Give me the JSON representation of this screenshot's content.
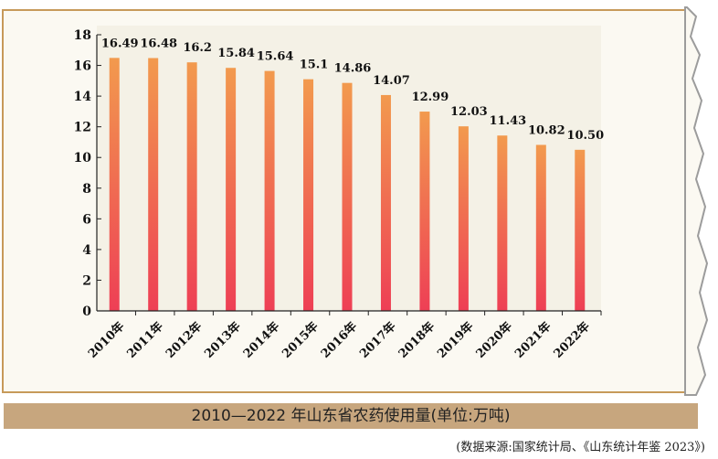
{
  "chart_data": {
    "type": "bar",
    "title": "2010—2022 年山东省农药使用量(单位:万吨)",
    "categories": [
      "2010年",
      "2011年",
      "2012年",
      "2013年",
      "2014年",
      "2015年",
      "2016年",
      "2017年",
      "2018年",
      "2019年",
      "2020年",
      "2021年",
      "2022年"
    ],
    "values": [
      16.49,
      16.48,
      16.2,
      15.84,
      15.64,
      15.1,
      14.86,
      14.07,
      12.99,
      12.03,
      11.43,
      10.82,
      10.5
    ],
    "value_labels": [
      "16.49",
      "16.48",
      "16.2",
      "15.84",
      "15.64",
      "15.1",
      "14.86",
      "14.07",
      "12.99",
      "12.03",
      "11.43",
      "10.82",
      "10.50"
    ],
    "ylim": [
      0,
      18
    ],
    "yticks": [
      0,
      2,
      4,
      6,
      8,
      10,
      12,
      14,
      16,
      18
    ],
    "xlabel": "",
    "ylabel": "",
    "grid": false,
    "bar_color_top": "#f29a4e",
    "bar_color_bottom": "#ee3f55"
  },
  "source": "(数据来源:国家统计局、《山东统计年鉴 2023》)",
  "colors": {
    "frame": "#c79a5a",
    "caption_bg": "#c7a67e",
    "plot_bg": "#f4f1e6"
  }
}
